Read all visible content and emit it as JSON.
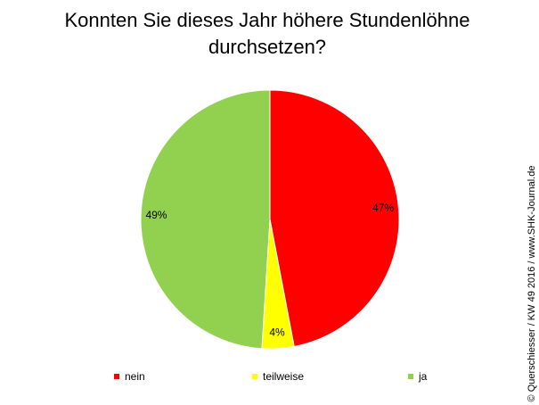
{
  "chart_data": {
    "type": "pie",
    "title": "Konnten Sie dieses Jahr höhere Stundenlöhne durchsetzen?",
    "categories": [
      "nein",
      "teilweise",
      "ja"
    ],
    "values": [
      47,
      4,
      49
    ],
    "value_labels": [
      "47%",
      "4%",
      "49%"
    ],
    "colors": [
      "#ff0000",
      "#ffff00",
      "#92d050"
    ],
    "legend": "bottom",
    "source": "© Querschiesser / KW 49 2016 / www.SHK-Journal.de"
  }
}
